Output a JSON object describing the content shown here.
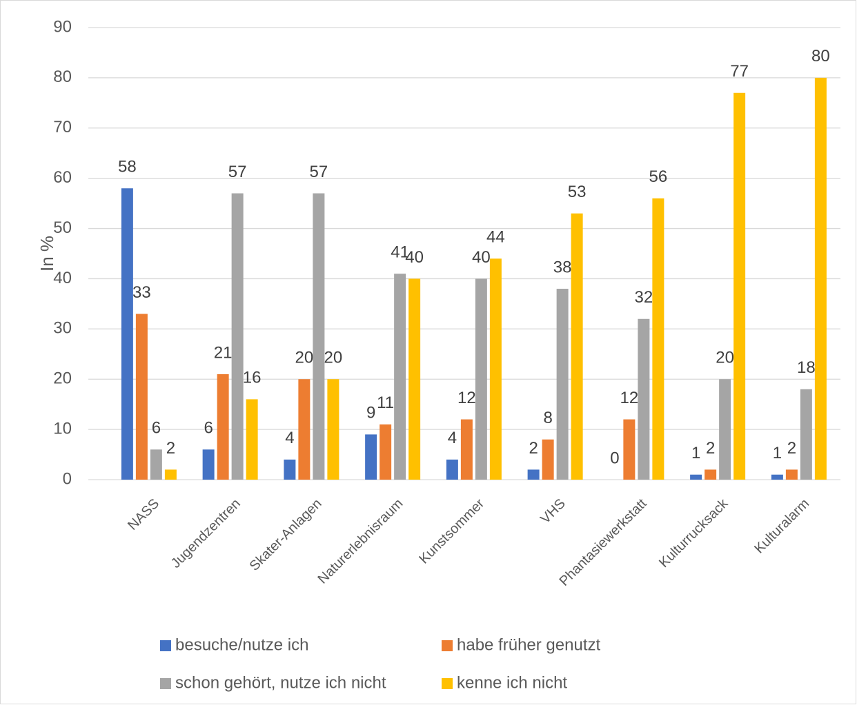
{
  "chart_data": {
    "type": "bar",
    "y_label": "In %",
    "categories": [
      "NASS",
      "Jugendzentren",
      "Skater-Anlagen",
      "Naturerlebnisraum",
      "Kunstsommer",
      "VHS",
      "Phantasiewerkstatt",
      "Kulturrucksack",
      "Kulturalarm"
    ],
    "series": [
      {
        "name": "besuche/nutze ich",
        "color": "#4472c4",
        "values": [
          58,
          6,
          4,
          9,
          4,
          2,
          0,
          1,
          1
        ]
      },
      {
        "name": "habe früher genutzt",
        "color": "#ed7d31",
        "values": [
          33,
          21,
          20,
          11,
          12,
          8,
          12,
          2,
          2
        ]
      },
      {
        "name": "schon gehört, nutze ich nicht",
        "color": "#a5a5a5",
        "values": [
          6,
          57,
          57,
          41,
          40,
          38,
          32,
          20,
          18
        ]
      },
      {
        "name": "kenne ich nicht",
        "color": "#ffc000",
        "values": [
          2,
          16,
          20,
          40,
          44,
          53,
          56,
          77,
          80
        ]
      }
    ],
    "ylim": [
      0,
      90
    ],
    "yticks": [
      0,
      10,
      20,
      30,
      40,
      50,
      60,
      70,
      80,
      90
    ],
    "grid": true,
    "legend": "bottom"
  }
}
